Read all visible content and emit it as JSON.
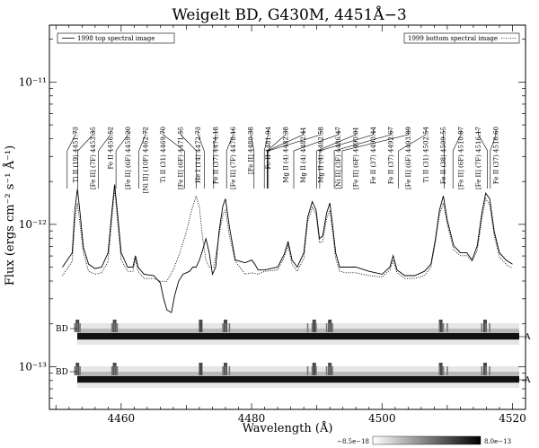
{
  "chart_data": {
    "type": "line",
    "title": "Weigelt BD, G430M, 4451Å−3",
    "xlabel": "Wavelength (Å)",
    "ylabel": "Flux (ergs cm⁻² s⁻¹ Å⁻¹)",
    "xlim": [
      4449,
      4522
    ],
    "ylim_log10": [
      -13.3,
      -10.6
    ],
    "y_scale": "log",
    "x_ticks": [
      4460,
      4480,
      4500,
      4520
    ],
    "x_tick_labels": [
      "4460",
      "4480",
      "4500",
      "4520"
    ],
    "y_ticks": [
      -13,
      -12,
      -11
    ],
    "y_tick_labels": [
      "10⁻¹³",
      "10⁻¹²",
      "10⁻¹¹"
    ],
    "legend_left": "1998 top spectral image",
    "legend_right": "1999 bottom spectral image",
    "series": [
      {
        "name": "1998 top spectral image",
        "style": "solid",
        "x": [
          4451.0,
          4452.5,
          4452.9,
          4453.3,
          4453.7,
          4454.2,
          4455.0,
          4456.0,
          4457.0,
          4458.0,
          4458.6,
          4459.0,
          4459.4,
          4460.0,
          4461.0,
          4461.8,
          4462.2,
          4462.6,
          4463.5,
          4465.0,
          4466.0,
          4466.5,
          4467.0,
          4467.7,
          4468.2,
          4468.8,
          4469.5,
          4470.5,
          4471.0,
          4471.5,
          4472.0,
          4472.5,
          4473.0,
          4473.5,
          4474.0,
          4474.5,
          4475.0,
          4475.6,
          4476.0,
          4476.6,
          4477.5,
          4479.0,
          4480.0,
          4480.5,
          4481.0,
          4482.0,
          4484.0,
          4485.0,
          4485.6,
          4486.2,
          4487.0,
          4488.0,
          4488.6,
          4489.3,
          4489.9,
          4490.4,
          4490.9,
          4491.5,
          4492.0,
          4492.4,
          4492.9,
          4493.5,
          4494.5,
          4496.0,
          4498.0,
          4500.0,
          4501.2,
          4501.7,
          4502.3,
          4503.5,
          4505.0,
          4506.5,
          4507.5,
          4508.2,
          4508.8,
          4509.4,
          4510.0,
          4511.0,
          4512.0,
          4513.0,
          4513.8,
          4514.6,
          4515.3,
          4515.9,
          4516.5,
          4517.2,
          4518.0,
          4519.0,
          4520.0
        ],
        "y": [
          -12.3,
          -12.2,
          -11.9,
          -11.75,
          -11.92,
          -12.16,
          -12.28,
          -12.31,
          -12.3,
          -12.2,
          -11.9,
          -11.72,
          -11.9,
          -12.2,
          -12.3,
          -12.3,
          -12.22,
          -12.3,
          -12.35,
          -12.36,
          -12.41,
          -12.52,
          -12.6,
          -12.62,
          -12.5,
          -12.4,
          -12.35,
          -12.33,
          -12.3,
          -12.3,
          -12.25,
          -12.18,
          -12.1,
          -12.2,
          -12.35,
          -12.3,
          -12.05,
          -11.87,
          -11.82,
          -12.02,
          -12.25,
          -12.27,
          -12.25,
          -12.28,
          -12.32,
          -12.32,
          -12.3,
          -12.21,
          -12.12,
          -12.25,
          -12.3,
          -12.2,
          -11.95,
          -11.84,
          -11.9,
          -12.1,
          -12.08,
          -11.92,
          -11.85,
          -12.0,
          -12.2,
          -12.3,
          -12.3,
          -12.3,
          -12.33,
          -12.35,
          -12.3,
          -12.22,
          -12.32,
          -12.36,
          -12.36,
          -12.33,
          -12.28,
          -12.1,
          -11.9,
          -11.8,
          -11.97,
          -12.15,
          -12.2,
          -12.2,
          -12.25,
          -12.15,
          -11.92,
          -11.78,
          -11.82,
          -12.05,
          -12.2,
          -12.25,
          -12.28
        ]
      },
      {
        "name": "1999 bottom spectral image",
        "style": "dotted",
        "x": [
          4451.0,
          4452.5,
          4452.9,
          4453.3,
          4453.7,
          4454.2,
          4455.0,
          4456.0,
          4457.0,
          4458.0,
          4458.6,
          4459.0,
          4459.4,
          4460.0,
          4461.0,
          4461.8,
          4462.2,
          4462.6,
          4463.5,
          4465.0,
          4466.0,
          4467.0,
          4468.0,
          4469.0,
          4470.0,
          4470.8,
          4471.5,
          4472.0,
          4472.5,
          4473.0,
          4473.5,
          4474.2,
          4475.0,
          4475.6,
          4476.0,
          4476.6,
          4477.5,
          4479.0,
          4480.0,
          4481.0,
          4482.0,
          4484.0,
          4485.0,
          4485.6,
          4486.2,
          4487.0,
          4488.0,
          4488.6,
          4489.3,
          4489.9,
          4490.4,
          4490.9,
          4491.5,
          4492.0,
          4492.4,
          4492.9,
          4493.5,
          4494.5,
          4496.0,
          4498.0,
          4500.0,
          4501.2,
          4501.7,
          4502.3,
          4503.5,
          4505.0,
          4506.5,
          4507.5,
          4508.2,
          4508.8,
          4509.4,
          4510.0,
          4511.0,
          4512.0,
          4513.0,
          4513.8,
          4514.6,
          4515.3,
          4515.9,
          4516.5,
          4517.2,
          4518.0,
          4519.0,
          4520.0
        ],
        "y": [
          -12.36,
          -12.26,
          -11.98,
          -11.85,
          -12.0,
          -12.2,
          -12.33,
          -12.35,
          -12.34,
          -12.26,
          -11.95,
          -11.75,
          -11.95,
          -12.25,
          -12.33,
          -12.33,
          -12.24,
          -12.33,
          -12.38,
          -12.38,
          -12.4,
          -12.4,
          -12.32,
          -12.2,
          -12.05,
          -11.9,
          -11.8,
          -11.88,
          -12.1,
          -12.25,
          -12.3,
          -12.3,
          -12.08,
          -11.93,
          -11.9,
          -12.08,
          -12.26,
          -12.35,
          -12.34,
          -12.35,
          -12.33,
          -12.32,
          -12.23,
          -12.15,
          -12.28,
          -12.33,
          -12.24,
          -11.98,
          -11.88,
          -11.93,
          -12.13,
          -12.12,
          -11.96,
          -11.9,
          -12.05,
          -12.24,
          -12.33,
          -12.34,
          -12.34,
          -12.36,
          -12.37,
          -12.32,
          -12.25,
          -12.34,
          -12.38,
          -12.38,
          -12.36,
          -12.3,
          -12.12,
          -11.93,
          -11.85,
          -12.0,
          -12.18,
          -12.22,
          -12.22,
          -12.26,
          -12.18,
          -11.96,
          -11.82,
          -11.86,
          -12.08,
          -12.23,
          -12.28,
          -12.31
        ]
      }
    ],
    "line_labels": [
      {
        "text": "Ti II  (19) 4451.73",
        "x": 4451.73
      },
      {
        "text": "[Fe II]  (7F) 4453.35",
        "x": 4453.35
      },
      {
        "text": "Fe II  4456.52",
        "x": 4456.52
      },
      {
        "text": "[Fe II]  (6F) 4459.20",
        "x": 4459.2
      },
      {
        "text": "[Ni II]  (10F) 4462.72",
        "x": 4462.72
      },
      {
        "text": "Ti II  (31) 4469.70",
        "x": 4469.7
      },
      {
        "text": "[Fe II]  (6F) 4471.55",
        "x": 4471.55
      },
      {
        "text": "He I (14) 4472.73",
        "x": 4472.73
      },
      {
        "text": "Fe II  (37) 4474.18",
        "x": 4474.18
      },
      {
        "text": "[Fe II]  (7F) 4476.16",
        "x": 4476.16
      },
      {
        "text": "[Fe II]  4480.38",
        "x": 4480.38
      },
      {
        "text": "Fe II  4481.94",
        "x": 4481.94
      },
      {
        "text": "Mg II (4) 4482.38",
        "x": 4482.38
      },
      {
        "text": "Mg II (4) 4482.41",
        "x": 4482.41
      },
      {
        "text": "Mg II (4) 4482.58",
        "x": 4482.58
      },
      {
        "text": "[Ni II]  (3F) 4486.47",
        "x": 4486.47
      },
      {
        "text": "[Fe II]  (6F) 4490.01",
        "x": 4490.01
      },
      {
        "text": "Fe II  (37) 4490.44",
        "x": 4490.44
      },
      {
        "text": "Fe II  (37) 4492.67",
        "x": 4492.67
      },
      {
        "text": "[Fe II]  (6F) 4493.89",
        "x": 4493.89
      },
      {
        "text": "Ti II  (31) 4502.54",
        "x": 4502.54
      },
      {
        "text": "Fe II  (38) 4509.55",
        "x": 4509.55
      },
      {
        "text": "[Fe II]  (6F) 4510.87",
        "x": 4510.87
      },
      {
        "text": "[Fe II]  (7F) 4516.17",
        "x": 4516.17
      },
      {
        "text": "Fe II  (37) 4516.60",
        "x": 4516.6
      }
    ],
    "spectral_images": [
      {
        "left_label": "BD",
        "right_label": "A"
      },
      {
        "left_label": "BD",
        "right_label": "A"
      }
    ],
    "colorbar": {
      "min_label": "−8.5e−18",
      "max_label": "8.0e−13"
    },
    "grid": false
  }
}
